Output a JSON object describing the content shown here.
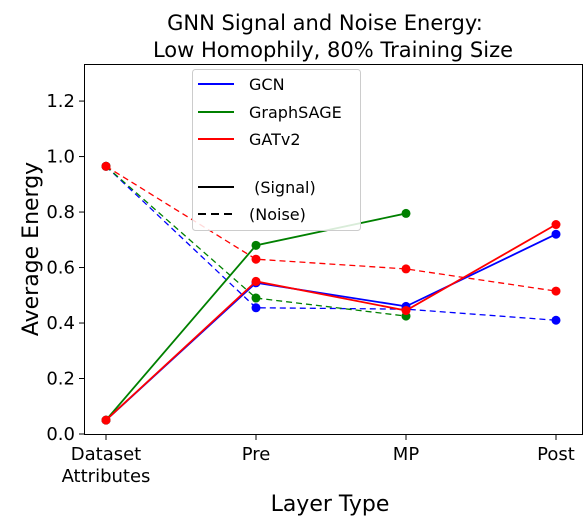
{
  "chart_data": {
    "type": "line",
    "title_line1": "GNN Signal and Noise Energy:",
    "title_line2": "Low Homophily, 80% Training Size",
    "xlabel": "Layer Type",
    "ylabel": "Average Energy",
    "categories": [
      "Dataset\nAttributes",
      "Pre",
      "MP",
      "Post"
    ],
    "ylim": [
      0,
      1.33
    ],
    "yticks": [
      "0.0",
      "0.2",
      "0.4",
      "0.6",
      "0.8",
      "1.0",
      "1.2"
    ],
    "grid": false,
    "legend_position": "upper-center",
    "series": [
      {
        "name": "GCN",
        "kind": "signal",
        "color": "#0000ff",
        "values": [
          0.05,
          0.545,
          0.46,
          0.72
        ]
      },
      {
        "name": "GraphSAGE",
        "kind": "signal",
        "color": "#008000",
        "values": [
          0.05,
          0.68,
          0.795,
          null
        ]
      },
      {
        "name": "GATv2",
        "kind": "signal",
        "color": "#ff0000",
        "values": [
          0.05,
          0.55,
          0.445,
          0.755
        ]
      },
      {
        "name": "GCN",
        "kind": "noise",
        "color": "#0000ff",
        "values": [
          0.965,
          0.455,
          0.45,
          0.41
        ]
      },
      {
        "name": "GraphSAGE",
        "kind": "noise",
        "color": "#008000",
        "values": [
          0.965,
          0.49,
          0.425,
          null
        ]
      },
      {
        "name": "GATv2",
        "kind": "noise",
        "color": "#ff0000",
        "values": [
          0.965,
          0.63,
          0.595,
          0.515
        ]
      }
    ],
    "legend": {
      "entries": [
        {
          "label": "GCN",
          "color": "#0000ff",
          "style": "solid"
        },
        {
          "label": "GraphSAGE",
          "color": "#008000",
          "style": "solid"
        },
        {
          "label": "GATv2",
          "color": "#ff0000",
          "style": "solid"
        },
        {
          "label": "",
          "color": "#ffffff",
          "style": "none"
        },
        {
          "label": " (Signal)",
          "color": "#000000",
          "style": "solid"
        },
        {
          "label": "(Noise)",
          "color": "#000000",
          "style": "dashed"
        }
      ]
    }
  }
}
